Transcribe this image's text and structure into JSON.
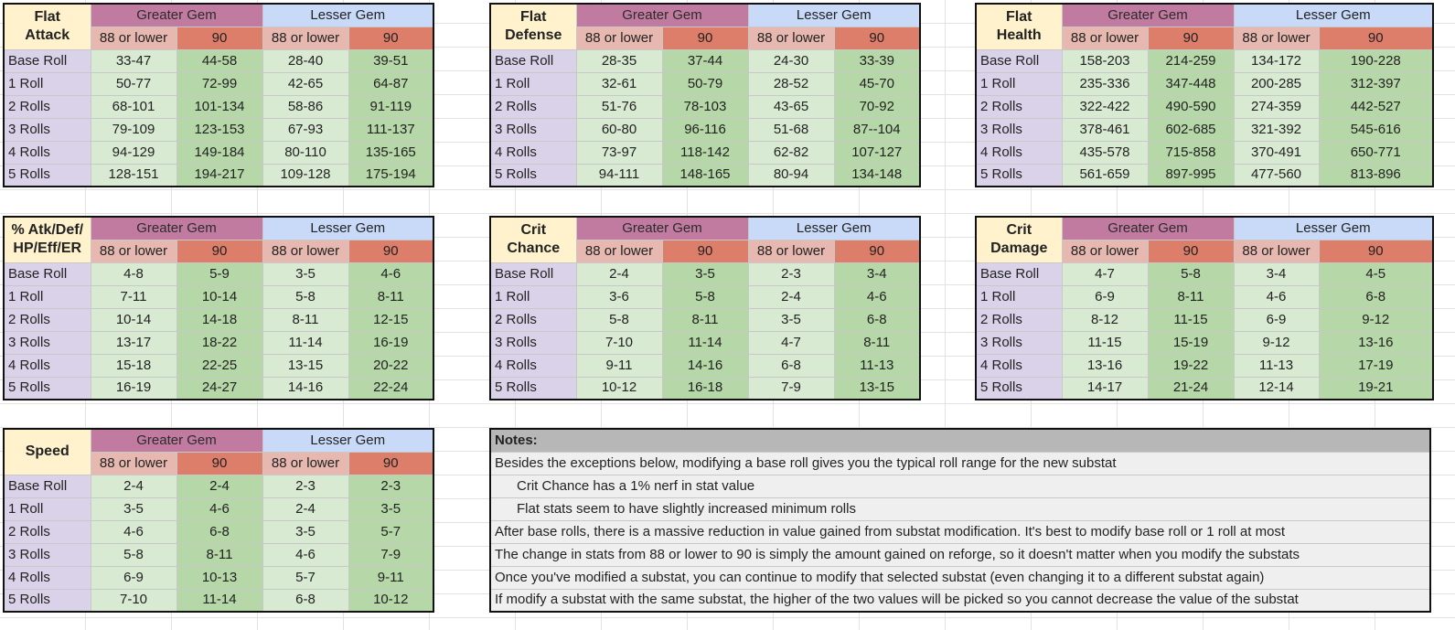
{
  "tables": [
    {
      "title": [
        "Flat",
        "Attack"
      ],
      "groups": [
        "Greater Gem",
        "Lesser Gem"
      ],
      "subs": [
        "88 or lower",
        "90",
        "88 or lower",
        "90"
      ],
      "rows": [
        [
          "Base Roll",
          "33-47",
          "44-58",
          "28-40",
          "39-51"
        ],
        [
          "1 Roll",
          "50-77",
          "72-99",
          "42-65",
          "64-87"
        ],
        [
          "2 Rolls",
          "68-101",
          "101-134",
          "58-86",
          "91-119"
        ],
        [
          "3 Rolls",
          "79-109",
          "123-153",
          "67-93",
          "111-137"
        ],
        [
          "4 Rolls",
          "94-129",
          "149-184",
          "80-110",
          "135-165"
        ],
        [
          "5 Rolls",
          "128-151",
          "194-217",
          "109-128",
          "175-194"
        ]
      ]
    },
    {
      "title": [
        "Flat",
        "Defense"
      ],
      "groups": [
        "Greater Gem",
        "Lesser Gem"
      ],
      "subs": [
        "88 or lower",
        "90",
        "88 or lower",
        "90"
      ],
      "rows": [
        [
          "Base Roll",
          "28-35",
          "37-44",
          "24-30",
          "33-39"
        ],
        [
          "1 Roll",
          "32-61",
          "50-79",
          "28-52",
          "45-70"
        ],
        [
          "2 Rolls",
          "51-76",
          "78-103",
          "43-65",
          "70-92"
        ],
        [
          "3 Rolls",
          "60-80",
          "96-116",
          "51-68",
          "87--104"
        ],
        [
          "4 Rolls",
          "73-97",
          "118-142",
          "62-82",
          "107-127"
        ],
        [
          "5 Rolls",
          "94-111",
          "148-165",
          "80-94",
          "134-148"
        ]
      ]
    },
    {
      "title": [
        "Flat",
        "Health"
      ],
      "groups": [
        "Greater Gem",
        "Lesser Gem"
      ],
      "subs": [
        "88 or lower",
        "90",
        "88 or lower",
        "90"
      ],
      "rows": [
        [
          "Base Roll",
          "158-203",
          "214-259",
          "134-172",
          "190-228"
        ],
        [
          "1 Roll",
          "235-336",
          "347-448",
          "200-285",
          "312-397"
        ],
        [
          "2 Rolls",
          "322-422",
          "490-590",
          "274-359",
          "442-527"
        ],
        [
          "3 Rolls",
          "378-461",
          "602-685",
          "321-392",
          "545-616"
        ],
        [
          "4 Rolls",
          "435-578",
          "715-858",
          "370-491",
          "650-771"
        ],
        [
          "5 Rolls",
          "561-659",
          "897-995",
          "477-560",
          "813-896"
        ]
      ]
    },
    {
      "title": [
        "% Atk/Def/",
        "HP/Eff/ER"
      ],
      "groups": [
        "Greater Gem",
        "Lesser Gem"
      ],
      "subs": [
        "88 or lower",
        "90",
        "88 or lower",
        "90"
      ],
      "rows": [
        [
          "Base Roll",
          "4-8",
          "5-9",
          "3-5",
          "4-6"
        ],
        [
          "1 Roll",
          "7-11",
          "10-14",
          "5-8",
          "8-11"
        ],
        [
          "2 Rolls",
          "10-14",
          "14-18",
          "8-11",
          "12-15"
        ],
        [
          "3 Rolls",
          "13-17",
          "18-22",
          "11-14",
          "16-19"
        ],
        [
          "4 Rolls",
          "15-18",
          "22-25",
          "13-15",
          "20-22"
        ],
        [
          "5 Rolls",
          "16-19",
          "24-27",
          "14-16",
          "22-24"
        ]
      ]
    },
    {
      "title": [
        "Crit",
        "Chance"
      ],
      "groups": [
        "Greater Gem",
        "Lesser Gem"
      ],
      "subs": [
        "88 or lower",
        "90",
        "88 or lower",
        "90"
      ],
      "rows": [
        [
          "Base Roll",
          "2-4",
          "3-5",
          "2-3",
          "3-4"
        ],
        [
          "1 Roll",
          "3-6",
          "5-8",
          "2-4",
          "4-6"
        ],
        [
          "2 Rolls",
          "5-8",
          "8-11",
          "3-5",
          "6-8"
        ],
        [
          "3 Rolls",
          "7-10",
          "11-14",
          "4-7",
          "8-11"
        ],
        [
          "4 Rolls",
          "9-11",
          "14-16",
          "6-8",
          "11-13"
        ],
        [
          "5 Rolls",
          "10-12",
          "16-18",
          "7-9",
          "13-15"
        ]
      ]
    },
    {
      "title": [
        "Crit",
        "Damage"
      ],
      "groups": [
        "Greater Gem",
        "Lesser Gem"
      ],
      "subs": [
        "88 or lower",
        "90",
        "88 or lower",
        "90"
      ],
      "rows": [
        [
          "Base Roll",
          "4-7",
          "5-8",
          "3-4",
          "4-5"
        ],
        [
          "1 Roll",
          "6-9",
          "8-11",
          "4-6",
          "6-8"
        ],
        [
          "2 Rolls",
          "8-12",
          "11-15",
          "6-9",
          "9-12"
        ],
        [
          "3 Rolls",
          "11-15",
          "15-19",
          "9-12",
          "13-16"
        ],
        [
          "4 Rolls",
          "13-16",
          "19-22",
          "11-13",
          "17-19"
        ],
        [
          "5 Rolls",
          "14-17",
          "21-24",
          "12-14",
          "19-21"
        ]
      ]
    },
    {
      "title": [
        "Speed"
      ],
      "groups": [
        "Greater Gem",
        "Lesser Gem"
      ],
      "subs": [
        "88 or lower",
        "90",
        "88 or lower",
        "90"
      ],
      "rows": [
        [
          "Base Roll",
          "2-4",
          "2-4",
          "2-3",
          "2-3"
        ],
        [
          "1 Roll",
          "3-5",
          "4-6",
          "2-4",
          "3-5"
        ],
        [
          "2 Rolls",
          "4-6",
          "6-8",
          "3-5",
          "5-7"
        ],
        [
          "3 Rolls",
          "5-8",
          "8-11",
          "4-6",
          "7-9"
        ],
        [
          "4 Rolls",
          "6-9",
          "10-13",
          "5-7",
          "9-11"
        ],
        [
          "5 Rolls",
          "7-10",
          "11-14",
          "6-8",
          "10-12"
        ]
      ]
    }
  ],
  "notes": {
    "title": "Notes:",
    "items": [
      {
        "text": "Besides the exceptions below, modifying a base roll gives you the typical roll range for the new substat",
        "indent": false
      },
      {
        "text": "Crit Chance has a 1% nerf in stat value",
        "indent": true
      },
      {
        "text": "Flat stats seem to have slightly increased minimum rolls",
        "indent": true
      },
      {
        "text": "After base rolls, there is a massive reduction in value gained from substat modification. It's best to modify base roll or 1 roll at most",
        "indent": false
      },
      {
        "text": "The change in stats from 88 or lower to 90 is simply the amount gained on reforge, so it doesn't matter when you modify the substats",
        "indent": false
      },
      {
        "text": "Once you've modified a substat, you can continue to modify that selected substat (even changing it to a different substat again)",
        "indent": false
      },
      {
        "text": "If modify a substat with the same substat, the higher of the two values will be picked so you cannot decrease the value of the substat",
        "indent": false
      }
    ]
  }
}
